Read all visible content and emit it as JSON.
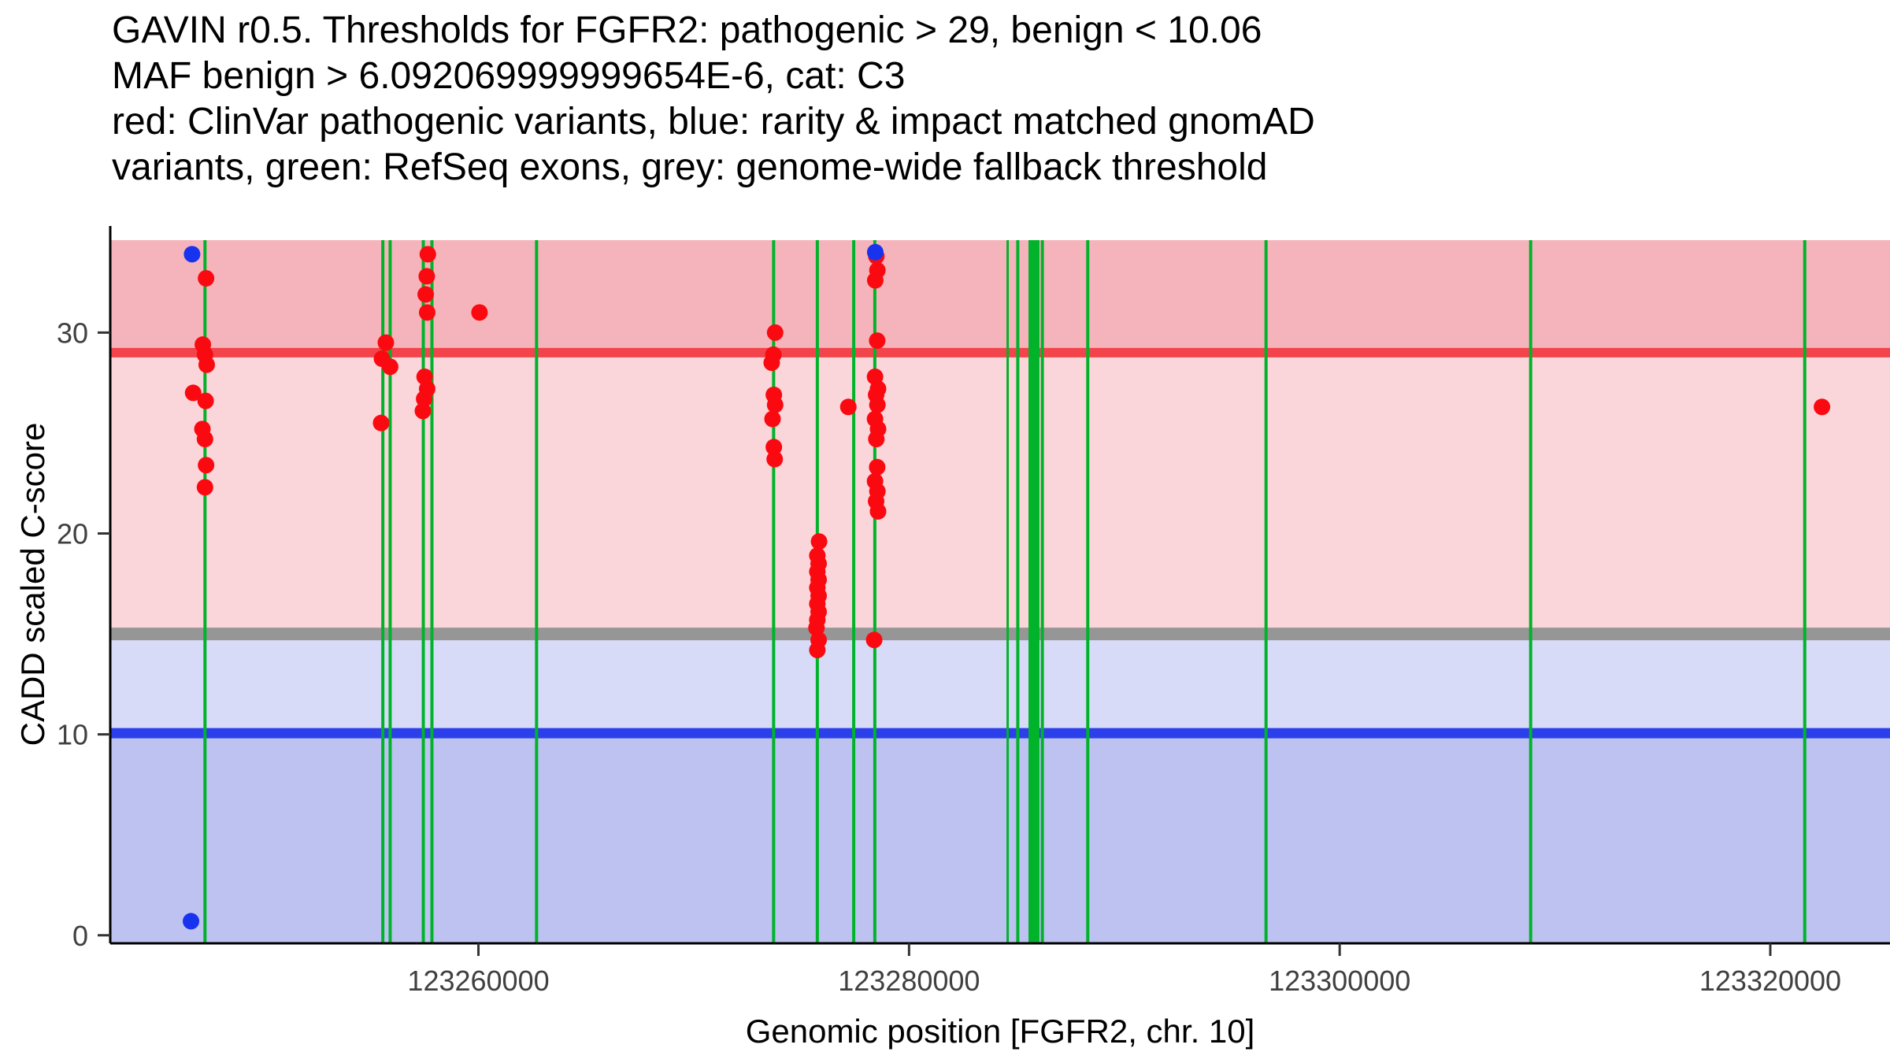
{
  "chart_data": {
    "type": "scatter",
    "title_lines": [
      "GAVIN r0.5. Thresholds for FGFR2: pathogenic > 29, benign < 10.06",
      "MAF benign > 6.092069999999654E-6, cat: C3",
      "red: ClinVar pathogenic variants, blue: rarity & impact matched gnomAD",
      "variants, green: RefSeq exons, grey: genome-wide fallback threshold"
    ],
    "xlabel": "Genomic position [FGFR2, chr. 10]",
    "ylabel": "CADD scaled C-score",
    "xlim": [
      123242900,
      123325560
    ],
    "ylim": [
      -0.4,
      34.6
    ],
    "x_ticks": [
      123260000,
      123280000,
      123300000,
      123320000
    ],
    "x_tick_labels": [
      "123260000",
      "123280000",
      "123300000",
      "123320000"
    ],
    "y_ticks": [
      0,
      10,
      20,
      30
    ],
    "y_tick_labels": [
      "0",
      "10",
      "20",
      "30"
    ],
    "grid": false,
    "legend_position": "none",
    "bands": [
      {
        "name": "pathogenic-zone",
        "from": 29,
        "to": 34.6,
        "color": "#F5B4BB"
      },
      {
        "name": "vous-upper-zone",
        "from": 15,
        "to": 29,
        "color": "#FAD5D9"
      },
      {
        "name": "vous-lower-zone",
        "from": 10.06,
        "to": 15,
        "color": "#D8DBF8"
      },
      {
        "name": "benign-zone",
        "from": -0.4,
        "to": 10.06,
        "color": "#BDC2F1"
      }
    ],
    "thresholds": [
      {
        "name": "pathogenic",
        "value": 29,
        "color": "#F3444B",
        "line_width": 12
      },
      {
        "name": "genome-wide-fallback",
        "value": 15,
        "color": "#969696",
        "line_width": 16
      },
      {
        "name": "benign",
        "value": 10.06,
        "color": "#2B3FEA",
        "line_width": 13
      }
    ],
    "exons": {
      "name": "RefSeq exons",
      "color": "#00B32A",
      "segments": [
        {
          "pos": 123247300,
          "w": 4
        },
        {
          "pos": 123255560,
          "w": 4
        },
        {
          "pos": 123255900,
          "w": 4
        },
        {
          "pos": 123257440,
          "w": 4
        },
        {
          "pos": 123257840,
          "w": 4
        },
        {
          "pos": 123262700,
          "w": 4
        },
        {
          "pos": 123273710,
          "w": 4
        },
        {
          "pos": 123275740,
          "w": 4
        },
        {
          "pos": 123277430,
          "w": 4
        },
        {
          "pos": 123278410,
          "w": 4
        },
        {
          "pos": 123284580,
          "w": 3
        },
        {
          "pos": 123285050,
          "w": 4
        },
        {
          "pos": 123285620,
          "w": 4
        },
        {
          "pos": 123285820,
          "w": 13
        },
        {
          "pos": 123286190,
          "w": 4
        },
        {
          "pos": 123288300,
          "w": 4
        },
        {
          "pos": 123296580,
          "w": 4
        },
        {
          "pos": 123308870,
          "w": 4
        },
        {
          "pos": 123321600,
          "w": 4
        }
      ]
    },
    "series": [
      {
        "name": "ClinVar pathogenic variants",
        "key": "clinvar-pathogenic-variant",
        "color": "#FA0A10",
        "point_radius": 10.5,
        "points": [
          [
            123247350,
            32.7
          ],
          [
            123247200,
            29.4
          ],
          [
            123247300,
            28.9
          ],
          [
            123247380,
            28.4
          ],
          [
            123246750,
            27.0
          ],
          [
            123247330,
            26.6
          ],
          [
            123247180,
            25.2
          ],
          [
            123247300,
            24.7
          ],
          [
            123247350,
            23.4
          ],
          [
            123247300,
            22.3
          ],
          [
            123255700,
            29.5
          ],
          [
            123255520,
            28.7
          ],
          [
            123255900,
            28.3
          ],
          [
            123255480,
            25.5
          ],
          [
            123257650,
            33.9
          ],
          [
            123257600,
            32.8
          ],
          [
            123257550,
            31.9
          ],
          [
            123257620,
            31.0
          ],
          [
            123257500,
            27.8
          ],
          [
            123257620,
            27.2
          ],
          [
            123257480,
            26.7
          ],
          [
            123257420,
            26.1
          ],
          [
            123260050,
            31.0
          ],
          [
            123273780,
            30.0
          ],
          [
            123273700,
            28.9
          ],
          [
            123273620,
            28.5
          ],
          [
            123273720,
            26.9
          ],
          [
            123273780,
            26.4
          ],
          [
            123273660,
            25.7
          ],
          [
            123273720,
            24.3
          ],
          [
            123273760,
            23.7
          ],
          [
            123275820,
            19.6
          ],
          [
            123275740,
            18.9
          ],
          [
            123275800,
            18.5
          ],
          [
            123275740,
            18.1
          ],
          [
            123275800,
            17.7
          ],
          [
            123275740,
            17.3
          ],
          [
            123275800,
            16.9
          ],
          [
            123275740,
            16.5
          ],
          [
            123275800,
            16.1
          ],
          [
            123275740,
            15.7
          ],
          [
            123275700,
            15.3
          ],
          [
            123275800,
            14.7
          ],
          [
            123275740,
            14.2
          ],
          [
            123277180,
            26.3
          ],
          [
            123278480,
            33.8
          ],
          [
            123278530,
            33.1
          ],
          [
            123278430,
            32.6
          ],
          [
            123278520,
            29.6
          ],
          [
            123278420,
            27.8
          ],
          [
            123278560,
            27.2
          ],
          [
            123278470,
            26.9
          ],
          [
            123278530,
            26.4
          ],
          [
            123278420,
            25.7
          ],
          [
            123278560,
            25.2
          ],
          [
            123278480,
            24.7
          ],
          [
            123278520,
            23.3
          ],
          [
            123278420,
            22.6
          ],
          [
            123278530,
            22.1
          ],
          [
            123278470,
            21.6
          ],
          [
            123278560,
            21.1
          ],
          [
            123278380,
            14.7
          ],
          [
            123322400,
            26.3
          ]
        ]
      },
      {
        "name": "rarity & impact matched gnomAD variants",
        "key": "gnomad-matched-variant",
        "color": "#1733EE",
        "point_radius": 10.5,
        "points": [
          [
            123246700,
            33.9
          ],
          [
            123246650,
            0.7
          ],
          [
            123278430,
            34.0
          ]
        ]
      }
    ]
  }
}
